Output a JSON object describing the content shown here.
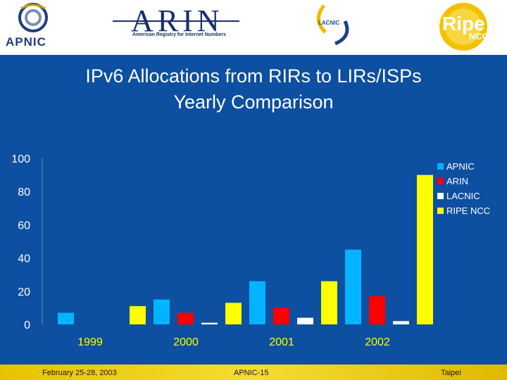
{
  "logos": {
    "apnic": "APNIC",
    "arin": "ARIN",
    "arin_subtitle": "American Registry for Internet Numbers",
    "lacnic": "LACNIC",
    "ripe": "Ripe",
    "ripe_ncc": "NCC"
  },
  "title_line1": "IPv6 Allocations from RIRs to LIRs/ISPs",
  "title_line2": "Yearly Comparison",
  "footer": {
    "date": "February 25-28, 2003",
    "event": "APNIC-15",
    "location": "Taipei"
  },
  "colors": {
    "background": "#0d4fa0",
    "APNIC": "#00b4ff",
    "ARIN": "#ff0000",
    "LACNIC": "#ffffff",
    "RIPE NCC": "#ffff00"
  },
  "chart_data": {
    "type": "bar",
    "title": "IPv6 Allocations from RIRs to LIRs/ISPs Yearly Comparison",
    "categories": [
      "1999",
      "2000",
      "2001",
      "2002"
    ],
    "series": [
      {
        "name": "APNIC",
        "values": [
          7,
          15,
          26,
          45
        ]
      },
      {
        "name": "ARIN",
        "values": [
          0,
          7,
          10,
          17
        ]
      },
      {
        "name": "LACNIC",
        "values": [
          0,
          1,
          4,
          2
        ]
      },
      {
        "name": "RIPE NCC",
        "values": [
          11,
          13,
          26,
          90
        ]
      }
    ],
    "yticks": [
      "0",
      "20",
      "40",
      "60",
      "80",
      "100"
    ],
    "ylim": [
      0,
      100
    ],
    "legend": "right",
    "grid": false
  }
}
